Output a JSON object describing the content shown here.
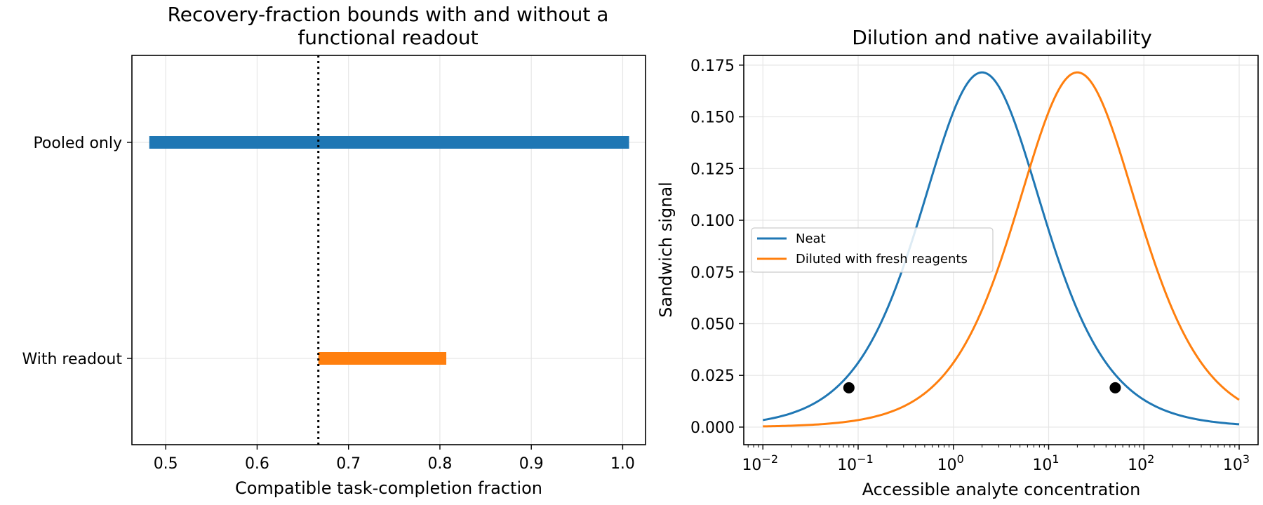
{
  "chart_data": [
    {
      "type": "bar",
      "orientation": "horizontal-range",
      "title_lines": [
        "Recovery-fraction bounds with and without a",
        "functional readout"
      ],
      "xlabel": "Compatible task-completion fraction",
      "ylabel": "",
      "xlim": [
        0.463,
        1.025
      ],
      "xticks": [
        0.5,
        0.6,
        0.7,
        0.8,
        0.9,
        1.0
      ],
      "xtick_labels": [
        "0.5",
        "0.6",
        "0.7",
        "0.8",
        "0.9",
        "1.0"
      ],
      "categories": [
        "Pooled only",
        "With readout"
      ],
      "ranges": [
        {
          "category": "Pooled only",
          "low": 0.482,
          "high": 1.007,
          "color": "#1f77b4"
        },
        {
          "category": "With readout",
          "low": 0.667,
          "high": 0.807,
          "color": "#ff7f0e"
        }
      ],
      "reference_line": {
        "x": 0.667,
        "style": "dotted",
        "color": "#000000"
      },
      "grid": true
    },
    {
      "type": "line",
      "title": "Dilution and native availability",
      "xlabel": "Accessible analyte concentration",
      "ylabel": "Sandwich signal",
      "xscale": "log",
      "xlim": [
        0.0063,
        1580
      ],
      "ylim": [
        -0.0085,
        0.1797
      ],
      "xticks": [
        0.01,
        0.1,
        1,
        10,
        100,
        1000
      ],
      "xtick_exponents": [
        "−2",
        "−1",
        "0",
        "1",
        "2",
        "3"
      ],
      "xtick_base": "10",
      "yticks": [
        0.0,
        0.025,
        0.05,
        0.075,
        0.1,
        0.125,
        0.15,
        0.175
      ],
      "ytick_labels": [
        "0.000",
        "0.025",
        "0.050",
        "0.075",
        "0.100",
        "0.125",
        "0.150",
        "0.175"
      ],
      "x_range": [
        0.01,
        1000
      ],
      "series": [
        {
          "name": "Neat",
          "color": "#1f77b4",
          "peak_x": 2.0,
          "peak_y": 0.1715
        },
        {
          "name": "Diluted with fresh reagents",
          "color": "#ff7f0e",
          "peak_x": 20.0,
          "peak_y": 0.1715
        }
      ],
      "markers": [
        {
          "x": 0.08,
          "y": 0.019,
          "color": "#000000"
        },
        {
          "x": 50.0,
          "y": 0.019,
          "color": "#000000"
        }
      ],
      "legend_position": "center-left",
      "grid": true
    }
  ]
}
